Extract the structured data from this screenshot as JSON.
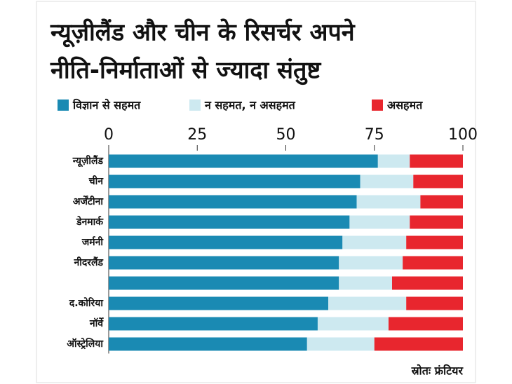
{
  "chart_data": {
    "type": "stacked-barh",
    "title": [
      "न्यूज़ीलैंड और चीन के रिसर्चर अपने",
      "नीति-निर्माताओं से ज्यादा संतुष्ट"
    ],
    "categories": [
      "न्यूज़ीलैंड",
      "चीन",
      "अर्जेंटीना",
      "डेनमार्क",
      "जर्मनी",
      "नीदरलैंड",
      null,
      "द.कोरिया",
      "नॉर्वे",
      "ऑस्ट्रेलिया"
    ],
    "series": [
      {
        "name": "विज्ञान से सहमत",
        "color": "#1a8ab3",
        "values": [
          76,
          71,
          70,
          68,
          66,
          65,
          65,
          62,
          59,
          56
        ]
      },
      {
        "name": "न सहमत, न असहमत",
        "color": "#cde9f0",
        "values": [
          9,
          15,
          18,
          17,
          18,
          18,
          15,
          22,
          20,
          19
        ]
      },
      {
        "name": "असहमत",
        "color": "#e8262e",
        "values": [
          15,
          14,
          12,
          15,
          16,
          17,
          20,
          16,
          21,
          25
        ]
      }
    ],
    "xlim": [
      0,
      100
    ],
    "xticks": [
      0,
      25,
      50,
      75,
      100
    ],
    "source": "स्रोतः फ्रंटियर"
  }
}
